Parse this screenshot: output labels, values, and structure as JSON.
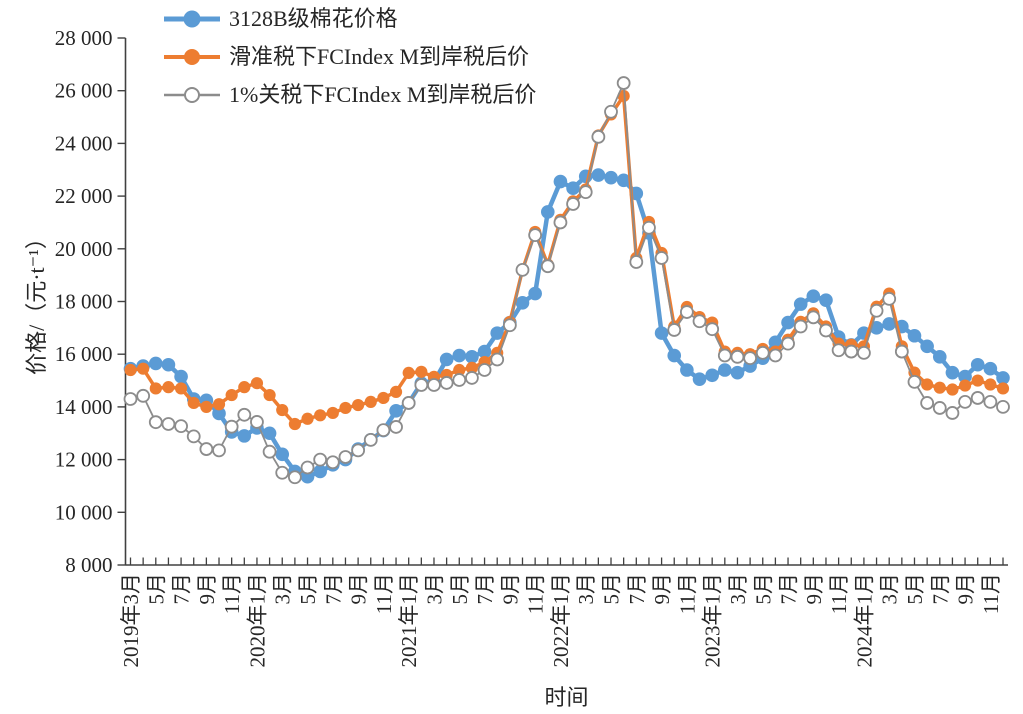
{
  "figure": {
    "x_axis_title": "时间",
    "y_axis_title": "价格/（元·t⁻¹）"
  },
  "chart_data": {
    "type": "line",
    "title": "",
    "xlabel": "时间",
    "ylabel": "价格/（元·t⁻¹）",
    "ylim": [
      8000,
      28000
    ],
    "y_tick_step": 2000,
    "grid": false,
    "legend_position": "top-left",
    "axis_color": "#404040",
    "text_color": "#262626",
    "n_points": 70,
    "months_per_label": 2,
    "y_tick_labels": [
      "8 000",
      "10 000",
      "12 000",
      "14 000",
      "16 000",
      "18 000",
      "20 000",
      "22 000",
      "24 000",
      "26 000",
      "28 000"
    ],
    "x_tick_labels": [
      "2019年3月",
      "5月",
      "7月",
      "9月",
      "11月",
      "2020年1月",
      "3月",
      "5月",
      "7月",
      "9月",
      "11月",
      "2021年1月",
      "3月",
      "5月",
      "7月",
      "9月",
      "11月",
      "2022年1月",
      "3月",
      "5月",
      "7月",
      "9月",
      "11月",
      "2023年1月",
      "3月",
      "5月",
      "7月",
      "9月",
      "11月",
      "2024年1月",
      "3月",
      "5月",
      "7月",
      "9月",
      "11月"
    ],
    "series": [
      {
        "name": "3128B级棉花价格",
        "color": "#5B9BD5",
        "marker": "filled-circle",
        "line_width": 4.5,
        "marker_radius": 6.8,
        "values": [
          15450,
          15550,
          15650,
          15600,
          15150,
          14300,
          14250,
          13750,
          13050,
          12900,
          13200,
          13000,
          12200,
          11550,
          11350,
          11550,
          11800,
          12000,
          12400,
          12750,
          13100,
          13850,
          14150,
          14900,
          14950,
          15800,
          15950,
          15900,
          16100,
          16800,
          17200,
          17950,
          18300,
          21400,
          22550,
          22300,
          22750,
          22800,
          22700,
          22600,
          22100,
          20600,
          16800,
          15950,
          15400,
          15050,
          15200,
          15400,
          15300,
          15550,
          15850,
          16450,
          17200,
          17900,
          18200,
          18050,
          16650,
          16350,
          16800,
          17000,
          17150,
          17050,
          16700,
          16300,
          15900,
          15300,
          15150,
          15600,
          15450,
          15100
        ]
      },
      {
        "name": "滑准税下FCIndex M到岸税后价",
        "color": "#ED7D31",
        "marker": "filled-circle",
        "line_width": 3.5,
        "marker_radius": 6.1,
        "values": [
          15400,
          15450,
          14700,
          14750,
          14700,
          14150,
          14000,
          14100,
          14450,
          14750,
          14900,
          14450,
          13880,
          13350,
          13550,
          13680,
          13770,
          13960,
          14070,
          14190,
          14340,
          14570,
          15290,
          15330,
          15140,
          15210,
          15400,
          15480,
          15700,
          16050,
          17220,
          19200,
          20640,
          19400,
          21100,
          21800,
          22250,
          24300,
          25100,
          25800,
          19650,
          21020,
          19840,
          17050,
          17790,
          17410,
          17200,
          16100,
          16050,
          16000,
          16200,
          16100,
          16550,
          17230,
          17550,
          17050,
          16400,
          16360,
          16300,
          17800,
          18300,
          16300,
          15300,
          14850,
          14730,
          14660,
          14810,
          15000,
          14850,
          14700
        ]
      },
      {
        "name": "1%关税下FCIndex M到岸税后价",
        "color": "#8C8C8C",
        "marker": "open-circle",
        "line_width": 1.8,
        "marker_radius": 6.0,
        "values": [
          14300,
          14420,
          13420,
          13350,
          13270,
          12880,
          12400,
          12350,
          13250,
          13700,
          13430,
          12300,
          11500,
          11330,
          11700,
          12000,
          11900,
          12100,
          12350,
          12750,
          13120,
          13240,
          14150,
          14830,
          14830,
          14910,
          15020,
          15100,
          15400,
          15800,
          17100,
          19200,
          20520,
          19340,
          21000,
          21700,
          22150,
          24250,
          25200,
          26290,
          19500,
          20800,
          19650,
          16920,
          17600,
          17250,
          16950,
          15950,
          15900,
          15850,
          16050,
          15950,
          16400,
          17050,
          17400,
          16900,
          16150,
          16100,
          16050,
          17650,
          18100,
          16100,
          14950,
          14150,
          13960,
          13770,
          14190,
          14340,
          14190,
          14000
        ]
      }
    ]
  }
}
